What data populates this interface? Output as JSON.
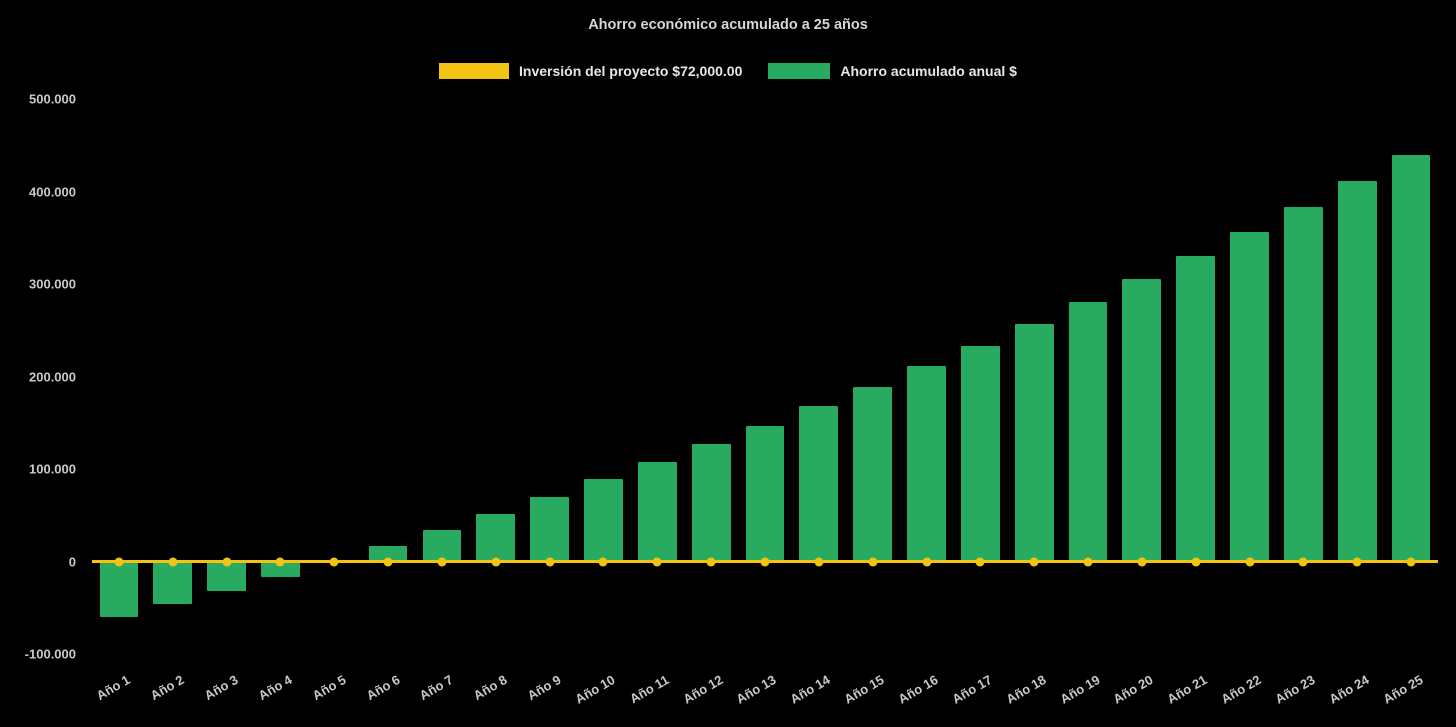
{
  "title": "Ahorro económico acumulado a 25 años",
  "colors": {
    "background": "#000000",
    "bar": "#28aa60",
    "line": "#f2c313",
    "text": "#c9c9c9"
  },
  "legend": [
    {
      "label": "Inversión del proyecto $72,000.00",
      "color": "#f2c313",
      "series_type": "line"
    },
    {
      "label": "Ahorro acumulado anual $",
      "color": "#28aa60",
      "series_type": "bar"
    }
  ],
  "chart_data": {
    "type": "bar",
    "title": "Ahorro económico acumulado a 25 años",
    "xlabel": "",
    "ylabel": "",
    "grid": false,
    "legend_position": "top",
    "ylim": [
      -100000,
      500000
    ],
    "yticks": [
      {
        "value": 500000,
        "label": "500.000"
      },
      {
        "value": 400000,
        "label": "400.000"
      },
      {
        "value": 300000,
        "label": "300.000"
      },
      {
        "value": 200000,
        "label": "200.000"
      },
      {
        "value": 100000,
        "label": "100.000"
      },
      {
        "value": 0,
        "label": "0"
      },
      {
        "value": -100000,
        "label": "-100.000"
      }
    ],
    "categories": [
      "Año 1",
      "Año 2",
      "Año 3",
      "Año 4",
      "Año 5",
      "Año 6",
      "Año 7",
      "Año 8",
      "Año 9",
      "Año 10",
      "Año 11",
      "Año 12",
      "Año 13",
      "Año 14",
      "Año 15",
      "Año 16",
      "Año 17",
      "Año 18",
      "Año 19",
      "Año 20",
      "Año 21",
      "Año 22",
      "Año 23",
      "Año 24",
      "Año 25"
    ],
    "series": [
      {
        "name": "Ahorro acumulado anual $",
        "type": "bar",
        "color": "#28aa60",
        "values": [
          -60000,
          -46000,
          -32000,
          -17000,
          2000,
          17000,
          34000,
          51000,
          70000,
          89000,
          108000,
          127000,
          147000,
          168000,
          189000,
          211000,
          233000,
          257000,
          281000,
          305000,
          330000,
          356000,
          383000,
          411000,
          440000
        ]
      },
      {
        "name": "Inversión del proyecto $72,000.00",
        "type": "line",
        "color": "#f2c313",
        "marker": "circle",
        "values": [
          0,
          0,
          0,
          0,
          0,
          0,
          0,
          0,
          0,
          0,
          0,
          0,
          0,
          0,
          0,
          0,
          0,
          0,
          0,
          0,
          0,
          0,
          0,
          0,
          0
        ]
      }
    ]
  }
}
